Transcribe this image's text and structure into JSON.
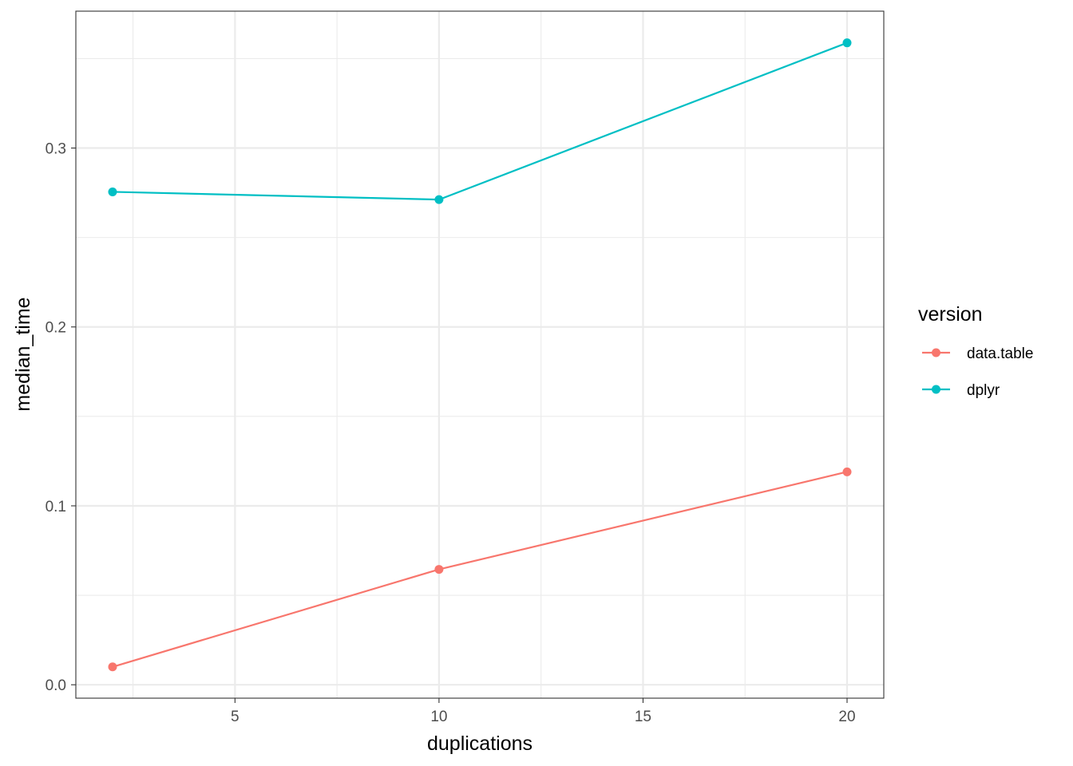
{
  "chart_data": {
    "type": "line",
    "xlabel": "duplications",
    "ylabel": "median_time",
    "xlim": [
      1.1,
      20.9
    ],
    "ylim": [
      -0.0075,
      0.3765
    ],
    "x_ticks": [
      5,
      10,
      15,
      20
    ],
    "x_minor_ticks": [
      2.5,
      7.5,
      12.5,
      17.5
    ],
    "y_ticks": [
      0.0,
      0.1,
      0.2,
      0.3
    ],
    "y_tick_labels": [
      "0.0",
      "0.1",
      "0.2",
      "0.3"
    ],
    "y_minor_ticks": [
      0.05,
      0.15,
      0.25,
      0.35
    ],
    "x_tick_labels": [
      "5",
      "10",
      "15",
      "20"
    ],
    "grid": true,
    "legend": {
      "title": "version",
      "position": "right"
    },
    "series": [
      {
        "name": "data.table",
        "color": "#F8766D",
        "x": [
          2,
          10,
          20
        ],
        "y": [
          0.01,
          0.0645,
          0.119
        ]
      },
      {
        "name": "dplyr",
        "color": "#00BFC4",
        "x": [
          2,
          10,
          20
        ],
        "y": [
          0.2755,
          0.2712,
          0.3588
        ]
      }
    ]
  }
}
